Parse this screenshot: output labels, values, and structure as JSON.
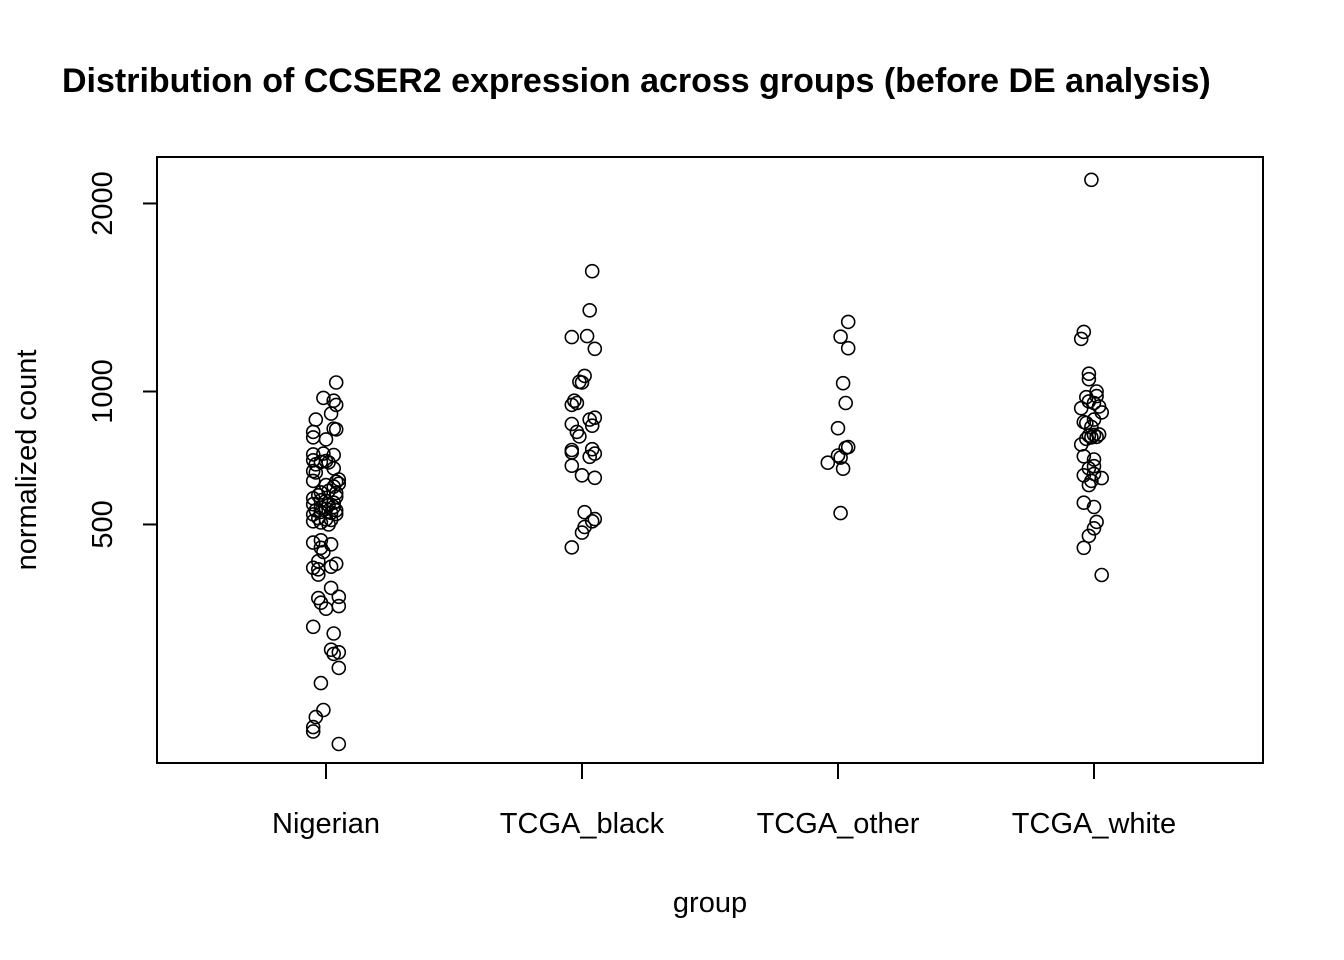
{
  "chart_data": {
    "type": "scatter",
    "title": "Distribution of CCSER2 expression across groups (before DE analysis)",
    "xlabel": "group",
    "ylabel": "normalized count",
    "y_scale": "sqrt",
    "y_ticks": [
      500,
      1000,
      2000
    ],
    "y_tick_labels": [
      "500",
      "1000",
      "2000"
    ],
    "ylim": [
      33,
      2300
    ],
    "grid": false,
    "categories": [
      "Nigerian",
      "TCGA_black",
      "TCGA_other",
      "TCGA_white"
    ],
    "series": [
      {
        "category": "Nigerian",
        "points": [
          {
            "j": 0.04,
            "y": 1040
          },
          {
            "j": -0.01,
            "y": 972
          },
          {
            "j": 0.03,
            "y": 960
          },
          {
            "j": 0.04,
            "y": 942
          },
          {
            "j": 0.02,
            "y": 905
          },
          {
            "j": -0.04,
            "y": 880
          },
          {
            "j": 0.03,
            "y": 843
          },
          {
            "j": 0.04,
            "y": 840
          },
          {
            "j": -0.05,
            "y": 830
          },
          {
            "j": -0.05,
            "y": 808
          },
          {
            "j": 0.0,
            "y": 800
          },
          {
            "j": -0.05,
            "y": 742
          },
          {
            "j": -0.01,
            "y": 745
          },
          {
            "j": 0.03,
            "y": 740
          },
          {
            "j": -0.05,
            "y": 720
          },
          {
            "j": -0.02,
            "y": 714
          },
          {
            "j": -0.04,
            "y": 705
          },
          {
            "j": 0.0,
            "y": 717
          },
          {
            "j": 0.01,
            "y": 712
          },
          {
            "j": 0.03,
            "y": 690
          },
          {
            "j": -0.05,
            "y": 680
          },
          {
            "j": -0.04,
            "y": 675
          },
          {
            "j": 0.05,
            "y": 650
          },
          {
            "j": 0.04,
            "y": 642
          },
          {
            "j": -0.05,
            "y": 645
          },
          {
            "j": 0.05,
            "y": 635
          },
          {
            "j": 0.0,
            "y": 630
          },
          {
            "j": 0.03,
            "y": 625
          },
          {
            "j": 0.01,
            "y": 610
          },
          {
            "j": -0.02,
            "y": 605
          },
          {
            "j": 0.04,
            "y": 603
          },
          {
            "j": -0.03,
            "y": 595
          },
          {
            "j": 0.04,
            "y": 590
          },
          {
            "j": -0.05,
            "y": 585
          },
          {
            "j": -0.02,
            "y": 578
          },
          {
            "j": 0.0,
            "y": 576
          },
          {
            "j": 0.03,
            "y": 570
          },
          {
            "j": -0.05,
            "y": 565
          },
          {
            "j": 0.01,
            "y": 562
          },
          {
            "j": 0.03,
            "y": 556
          },
          {
            "j": -0.02,
            "y": 553
          },
          {
            "j": 0.0,
            "y": 550
          },
          {
            "j": -0.04,
            "y": 545
          },
          {
            "j": 0.04,
            "y": 545
          },
          {
            "j": -0.02,
            "y": 540
          },
          {
            "j": 0.02,
            "y": 537
          },
          {
            "j": 0.04,
            "y": 533
          },
          {
            "j": -0.05,
            "y": 532
          },
          {
            "j": -0.03,
            "y": 520
          },
          {
            "j": 0.0,
            "y": 516
          },
          {
            "j": 0.02,
            "y": 514
          },
          {
            "j": -0.05,
            "y": 510
          },
          {
            "j": -0.02,
            "y": 506
          },
          {
            "j": 0.01,
            "y": 500
          },
          {
            "j": -0.02,
            "y": 452
          },
          {
            "j": 0.02,
            "y": 440
          },
          {
            "j": -0.05,
            "y": 445
          },
          {
            "j": -0.02,
            "y": 430
          },
          {
            "j": -0.01,
            "y": 418
          },
          {
            "j": -0.03,
            "y": 392
          },
          {
            "j": 0.04,
            "y": 385
          },
          {
            "j": 0.02,
            "y": 377
          },
          {
            "j": -0.05,
            "y": 374
          },
          {
            "j": -0.03,
            "y": 370
          },
          {
            "j": -0.03,
            "y": 356
          },
          {
            "j": 0.02,
            "y": 322
          },
          {
            "j": 0.05,
            "y": 300
          },
          {
            "j": -0.03,
            "y": 297
          },
          {
            "j": -0.02,
            "y": 286
          },
          {
            "j": 0.05,
            "y": 278
          },
          {
            "j": 0.0,
            "y": 272
          },
          {
            "j": -0.05,
            "y": 232
          },
          {
            "j": 0.03,
            "y": 218
          },
          {
            "j": 0.02,
            "y": 186
          },
          {
            "j": 0.05,
            "y": 181
          },
          {
            "j": 0.03,
            "y": 178
          },
          {
            "j": 0.05,
            "y": 153
          },
          {
            "j": -0.02,
            "y": 128
          },
          {
            "j": -0.01,
            "y": 89
          },
          {
            "j": -0.04,
            "y": 80
          },
          {
            "j": -0.05,
            "y": 68
          },
          {
            "j": -0.05,
            "y": 63
          },
          {
            "j": 0.05,
            "y": 50
          }
        ]
      },
      {
        "category": "TCGA_black",
        "points": [
          {
            "j": 0.04,
            "y": 1600
          },
          {
            "j": 0.03,
            "y": 1390
          },
          {
            "j": -0.04,
            "y": 1254
          },
          {
            "j": 0.02,
            "y": 1259
          },
          {
            "j": 0.05,
            "y": 1197
          },
          {
            "j": 0.01,
            "y": 1070
          },
          {
            "j": 0.0,
            "y": 1040
          },
          {
            "j": -0.01,
            "y": 1043
          },
          {
            "j": -0.03,
            "y": 960
          },
          {
            "j": -0.02,
            "y": 950
          },
          {
            "j": -0.04,
            "y": 942
          },
          {
            "j": 0.05,
            "y": 888
          },
          {
            "j": 0.03,
            "y": 880
          },
          {
            "j": -0.04,
            "y": 862
          },
          {
            "j": 0.04,
            "y": 855
          },
          {
            "j": -0.02,
            "y": 830
          },
          {
            "j": -0.01,
            "y": 812
          },
          {
            "j": 0.04,
            "y": 762
          },
          {
            "j": -0.04,
            "y": 759
          },
          {
            "j": -0.04,
            "y": 750
          },
          {
            "j": 0.05,
            "y": 745
          },
          {
            "j": 0.03,
            "y": 733
          },
          {
            "j": -0.04,
            "y": 700
          },
          {
            "j": 0.0,
            "y": 665
          },
          {
            "j": 0.05,
            "y": 656
          },
          {
            "j": 0.01,
            "y": 539
          },
          {
            "j": 0.05,
            "y": 517
          },
          {
            "j": 0.04,
            "y": 510
          },
          {
            "j": 0.01,
            "y": 492
          },
          {
            "j": 0.0,
            "y": 475
          },
          {
            "j": -0.04,
            "y": 431
          }
        ]
      },
      {
        "category": "TCGA_other",
        "points": [
          {
            "j": 0.04,
            "y": 1330
          },
          {
            "j": 0.01,
            "y": 1256
          },
          {
            "j": 0.04,
            "y": 1200
          },
          {
            "j": 0.02,
            "y": 1037
          },
          {
            "j": 0.03,
            "y": 950
          },
          {
            "j": 0.0,
            "y": 845
          },
          {
            "j": 0.04,
            "y": 770
          },
          {
            "j": 0.03,
            "y": 767
          },
          {
            "j": 0.0,
            "y": 738
          },
          {
            "j": 0.01,
            "y": 730
          },
          {
            "j": -0.04,
            "y": 711
          },
          {
            "j": 0.02,
            "y": 689
          },
          {
            "j": 0.01,
            "y": 536
          }
        ]
      },
      {
        "category": "TCGA_white",
        "points": [
          {
            "j": -0.01,
            "y": 2150
          },
          {
            "j": -0.04,
            "y": 1280
          },
          {
            "j": -0.05,
            "y": 1245
          },
          {
            "j": -0.02,
            "y": 1080
          },
          {
            "j": -0.02,
            "y": 1055
          },
          {
            "j": 0.01,
            "y": 1000
          },
          {
            "j": 0.01,
            "y": 980
          },
          {
            "j": -0.03,
            "y": 975
          },
          {
            "j": -0.02,
            "y": 957
          },
          {
            "j": 0.0,
            "y": 950
          },
          {
            "j": 0.02,
            "y": 935
          },
          {
            "j": -0.05,
            "y": 928
          },
          {
            "j": 0.03,
            "y": 910
          },
          {
            "j": 0.0,
            "y": 880
          },
          {
            "j": -0.04,
            "y": 870
          },
          {
            "j": -0.03,
            "y": 866
          },
          {
            "j": -0.01,
            "y": 850
          },
          {
            "j": 0.02,
            "y": 820
          },
          {
            "j": 0.0,
            "y": 818
          },
          {
            "j": -0.02,
            "y": 815
          },
          {
            "j": 0.01,
            "y": 810
          },
          {
            "j": -0.01,
            "y": 808
          },
          {
            "j": -0.03,
            "y": 802
          },
          {
            "j": -0.05,
            "y": 780
          },
          {
            "j": -0.04,
            "y": 735
          },
          {
            "j": 0.0,
            "y": 723
          },
          {
            "j": -0.02,
            "y": 690
          },
          {
            "j": 0.0,
            "y": 698
          },
          {
            "j": 0.0,
            "y": 670
          },
          {
            "j": -0.04,
            "y": 665
          },
          {
            "j": 0.03,
            "y": 655
          },
          {
            "j": -0.01,
            "y": 645
          },
          {
            "j": -0.02,
            "y": 630
          },
          {
            "j": -0.04,
            "y": 570
          },
          {
            "j": 0.0,
            "y": 556
          },
          {
            "j": 0.01,
            "y": 508
          },
          {
            "j": 0.0,
            "y": 488
          },
          {
            "j": -0.02,
            "y": 465
          },
          {
            "j": -0.04,
            "y": 430
          },
          {
            "j": 0.03,
            "y": 355
          }
        ]
      }
    ]
  }
}
